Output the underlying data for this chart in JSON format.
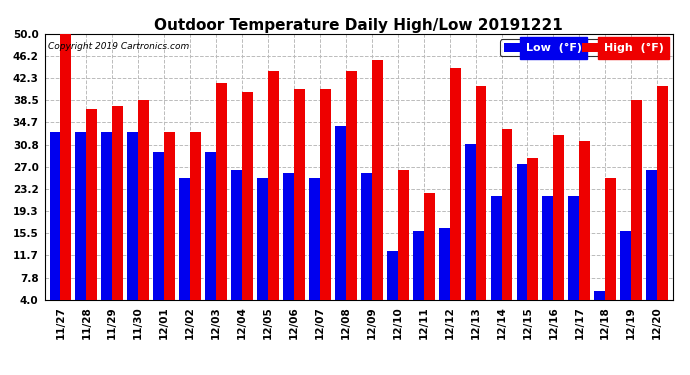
{
  "title": "Outdoor Temperature Daily High/Low 20191221",
  "copyright": "Copyright 2019 Cartronics.com",
  "legend_low": "Low  (°F)",
  "legend_high": "High  (°F)",
  "yticks": [
    4.0,
    7.8,
    11.7,
    15.5,
    19.3,
    23.2,
    27.0,
    30.8,
    34.7,
    38.5,
    42.3,
    46.2,
    50.0
  ],
  "ylim_min": 4.0,
  "ylim_max": 50.0,
  "categories": [
    "11/27",
    "11/28",
    "11/29",
    "11/30",
    "12/01",
    "12/02",
    "12/03",
    "12/04",
    "12/05",
    "12/06",
    "12/07",
    "12/08",
    "12/09",
    "12/10",
    "12/11",
    "12/12",
    "12/13",
    "12/14",
    "12/15",
    "12/16",
    "12/17",
    "12/18",
    "12/19",
    "12/20"
  ],
  "low_values": [
    33.0,
    33.0,
    33.0,
    33.0,
    29.5,
    25.0,
    29.5,
    26.5,
    25.0,
    26.0,
    25.0,
    34.0,
    26.0,
    12.5,
    16.0,
    16.5,
    31.0,
    22.0,
    27.5,
    22.0,
    22.0,
    5.5,
    16.0,
    26.5
  ],
  "high_values": [
    50.0,
    37.0,
    37.5,
    38.5,
    33.0,
    33.0,
    41.5,
    40.0,
    43.5,
    40.5,
    40.5,
    43.5,
    45.5,
    26.5,
    22.5,
    44.0,
    41.0,
    33.5,
    28.5,
    32.5,
    31.5,
    25.0,
    38.5,
    41.0
  ],
  "low_color": "#0000ee",
  "high_color": "#ee0000",
  "bg_color": "#ffffff",
  "grid_color": "#bbbbbb",
  "bar_width": 0.42,
  "title_fontsize": 11,
  "tick_fontsize": 7.5,
  "copyright_fontsize": 6.5,
  "legend_fontsize": 8
}
